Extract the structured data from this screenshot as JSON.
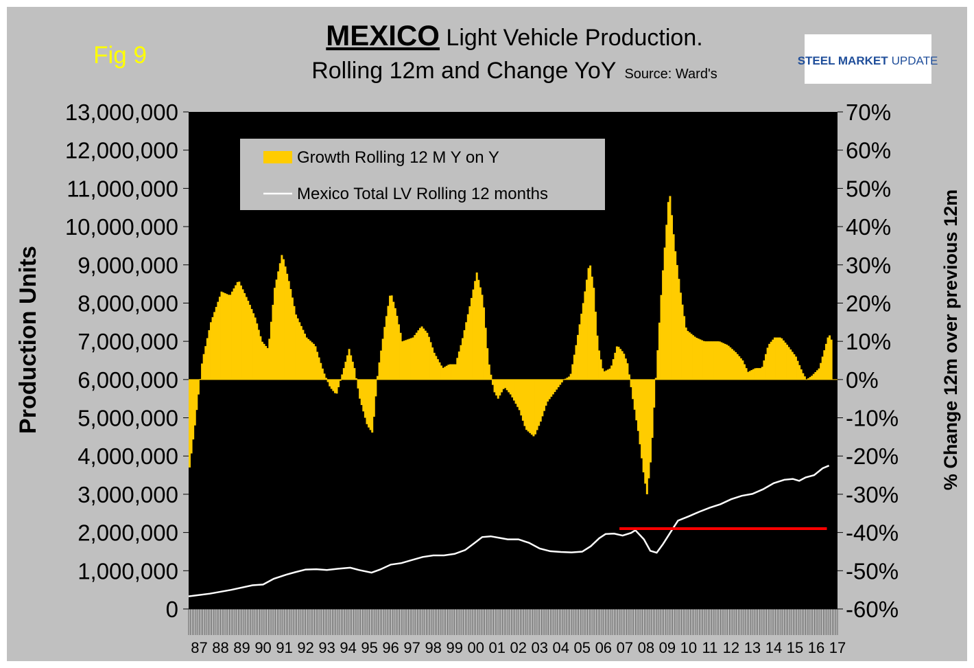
{
  "figure": {
    "fig_label": "Fig 9",
    "title_main": "MEXICO",
    "title_rest": " Light Vehicle Production.",
    "subtitle": "Rolling 12m and Change YoY",
    "source": "Source: Ward's",
    "logo_text_bold": "STEEL MARKET",
    "logo_text_light": "UPDATE"
  },
  "colors": {
    "panel_bg": "#c0c0c0",
    "plot_bg": "#000000",
    "growth_bar": "#ffcc00",
    "total_line": "#ffffff",
    "reference_line": "#ff0000",
    "fig_label": "#ffff00",
    "logo_blue": "#1f4e9a"
  },
  "chart_data": {
    "type": "bar",
    "combo": "bar+line",
    "ylabel": "Production Units",
    "y2label": "% Change 12m over previous 12m",
    "ylim": [
      0,
      13000000
    ],
    "y2lim": [
      -60,
      70
    ],
    "y_ticks": [
      "0",
      "1,000,000",
      "2,000,000",
      "3,000,000",
      "4,000,000",
      "5,000,000",
      "6,000,000",
      "7,000,000",
      "8,000,000",
      "9,000,000",
      "10,000,000",
      "11,000,000",
      "12,000,000",
      "13,000,000"
    ],
    "y2_ticks": [
      "-60%",
      "-50%",
      "-40%",
      "-30%",
      "-20%",
      "-10%",
      "0%",
      "10%",
      "20%",
      "30%",
      "40%",
      "50%",
      "60%",
      "70%"
    ],
    "categories": [
      "87",
      "88",
      "89",
      "90",
      "91",
      "92",
      "93",
      "94",
      "95",
      "96",
      "97",
      "98",
      "99",
      "00",
      "01",
      "02",
      "03",
      "04",
      "05",
      "06",
      "07",
      "08",
      "09",
      "10",
      "11",
      "12",
      "13",
      "14",
      "15",
      "16",
      "17"
    ],
    "legend_position": "top-left inside plot",
    "grid": false,
    "series": [
      {
        "name": "Growth Rolling 12 M Y on Y",
        "kind": "bar",
        "axis": "right",
        "points": [
          [
            1987.0,
            -23
          ],
          [
            1987.25,
            -12
          ],
          [
            1987.6,
            5
          ],
          [
            1988.0,
            15
          ],
          [
            1988.5,
            23
          ],
          [
            1988.9,
            22
          ],
          [
            1989.3,
            26
          ],
          [
            1989.8,
            20
          ],
          [
            1990.1,
            16
          ],
          [
            1990.4,
            10
          ],
          [
            1990.7,
            8
          ],
          [
            1991.0,
            24
          ],
          [
            1991.35,
            33
          ],
          [
            1991.7,
            25
          ],
          [
            1992.0,
            17
          ],
          [
            1992.5,
            11
          ],
          [
            1992.9,
            9
          ],
          [
            1993.3,
            2
          ],
          [
            1993.6,
            -2
          ],
          [
            1993.9,
            -4
          ],
          [
            1994.2,
            2
          ],
          [
            1994.5,
            8
          ],
          [
            1994.75,
            3
          ],
          [
            1995.0,
            -5
          ],
          [
            1995.35,
            -12
          ],
          [
            1995.6,
            -14
          ],
          [
            1995.85,
            2
          ],
          [
            1996.2,
            15
          ],
          [
            1996.45,
            23
          ],
          [
            1996.7,
            18
          ],
          [
            1997.0,
            10
          ],
          [
            1997.5,
            11
          ],
          [
            1997.9,
            14
          ],
          [
            1998.2,
            12
          ],
          [
            1998.5,
            7
          ],
          [
            1998.9,
            3
          ],
          [
            1999.2,
            4
          ],
          [
            1999.5,
            4
          ],
          [
            1999.8,
            10
          ],
          [
            2000.2,
            20
          ],
          [
            2000.5,
            28
          ],
          [
            2000.8,
            21
          ],
          [
            2001.05,
            5
          ],
          [
            2001.3,
            -3
          ],
          [
            2001.5,
            -5
          ],
          [
            2001.8,
            -2
          ],
          [
            2002.1,
            -4
          ],
          [
            2002.5,
            -8
          ],
          [
            2002.8,
            -13
          ],
          [
            2003.2,
            -15
          ],
          [
            2003.5,
            -11
          ],
          [
            2003.8,
            -6
          ],
          [
            2004.2,
            -3
          ],
          [
            2004.6,
            0
          ],
          [
            2004.9,
            1
          ],
          [
            2005.2,
            10
          ],
          [
            2005.5,
            20
          ],
          [
            2005.8,
            31
          ],
          [
            2006.0,
            24
          ],
          [
            2006.2,
            9
          ],
          [
            2006.45,
            2
          ],
          [
            2006.8,
            3
          ],
          [
            2007.1,
            9
          ],
          [
            2007.4,
            7
          ],
          [
            2007.6,
            4
          ],
          [
            2007.8,
            -4
          ],
          [
            2008.1,
            -14
          ],
          [
            2008.35,
            -25
          ],
          [
            2008.5,
            -30
          ],
          [
            2008.7,
            -20
          ],
          [
            2008.9,
            -1
          ],
          [
            2009.2,
            25
          ],
          [
            2009.55,
            50
          ],
          [
            2009.8,
            35
          ],
          [
            2010.1,
            22
          ],
          [
            2010.35,
            13
          ],
          [
            2010.8,
            11
          ],
          [
            2011.2,
            10
          ],
          [
            2011.6,
            10
          ],
          [
            2011.9,
            10
          ],
          [
            2012.3,
            9
          ],
          [
            2012.7,
            7
          ],
          [
            2013.0,
            5
          ],
          [
            2013.25,
            2
          ],
          [
            2013.6,
            3
          ],
          [
            2013.9,
            3
          ],
          [
            2014.2,
            9
          ],
          [
            2014.5,
            11
          ],
          [
            2014.8,
            11
          ],
          [
            2015.1,
            9
          ],
          [
            2015.5,
            6
          ],
          [
            2015.8,
            2
          ],
          [
            2016.0,
            0
          ],
          [
            2016.25,
            1
          ],
          [
            2016.6,
            3
          ],
          [
            2016.85,
            8
          ],
          [
            2017.05,
            12
          ],
          [
            2017.2,
            10
          ]
        ]
      },
      {
        "name": "Mexico Total LV Rolling 12 months",
        "kind": "line",
        "axis": "left",
        "points": [
          [
            1987.0,
            330000
          ],
          [
            1988.0,
            400000
          ],
          [
            1989.0,
            500000
          ],
          [
            1990.0,
            620000
          ],
          [
            1990.5,
            640000
          ],
          [
            1991.0,
            790000
          ],
          [
            1991.6,
            900000
          ],
          [
            1992.0,
            960000
          ],
          [
            1992.5,
            1030000
          ],
          [
            1993.0,
            1040000
          ],
          [
            1993.5,
            1020000
          ],
          [
            1994.0,
            1050000
          ],
          [
            1994.6,
            1080000
          ],
          [
            1995.0,
            1020000
          ],
          [
            1995.6,
            950000
          ],
          [
            1996.0,
            1030000
          ],
          [
            1996.5,
            1160000
          ],
          [
            1997.0,
            1200000
          ],
          [
            1997.5,
            1280000
          ],
          [
            1998.0,
            1360000
          ],
          [
            1998.5,
            1400000
          ],
          [
            1999.0,
            1400000
          ],
          [
            1999.5,
            1440000
          ],
          [
            2000.0,
            1540000
          ],
          [
            2000.5,
            1750000
          ],
          [
            2000.8,
            1880000
          ],
          [
            2001.2,
            1900000
          ],
          [
            2001.6,
            1860000
          ],
          [
            2002.0,
            1820000
          ],
          [
            2002.5,
            1820000
          ],
          [
            2003.0,
            1730000
          ],
          [
            2003.5,
            1580000
          ],
          [
            2004.0,
            1510000
          ],
          [
            2004.5,
            1490000
          ],
          [
            2005.0,
            1480000
          ],
          [
            2005.5,
            1500000
          ],
          [
            2005.9,
            1640000
          ],
          [
            2006.3,
            1850000
          ],
          [
            2006.6,
            1960000
          ],
          [
            2007.0,
            1970000
          ],
          [
            2007.4,
            1920000
          ],
          [
            2007.8,
            1990000
          ],
          [
            2008.0,
            2060000
          ],
          [
            2008.4,
            1820000
          ],
          [
            2008.7,
            1520000
          ],
          [
            2009.0,
            1470000
          ],
          [
            2009.3,
            1700000
          ],
          [
            2009.7,
            2050000
          ],
          [
            2010.0,
            2310000
          ],
          [
            2010.5,
            2420000
          ],
          [
            2011.0,
            2540000
          ],
          [
            2011.5,
            2650000
          ],
          [
            2012.0,
            2740000
          ],
          [
            2012.5,
            2870000
          ],
          [
            2013.0,
            2960000
          ],
          [
            2013.5,
            3010000
          ],
          [
            2014.0,
            3130000
          ],
          [
            2014.5,
            3290000
          ],
          [
            2015.0,
            3380000
          ],
          [
            2015.4,
            3400000
          ],
          [
            2015.7,
            3350000
          ],
          [
            2016.0,
            3440000
          ],
          [
            2016.4,
            3500000
          ],
          [
            2016.8,
            3680000
          ],
          [
            2017.1,
            3750000
          ]
        ]
      }
    ],
    "reference_line": {
      "y": 2100000,
      "x_from": 2007.25,
      "x_to": 2017.0
    }
  }
}
